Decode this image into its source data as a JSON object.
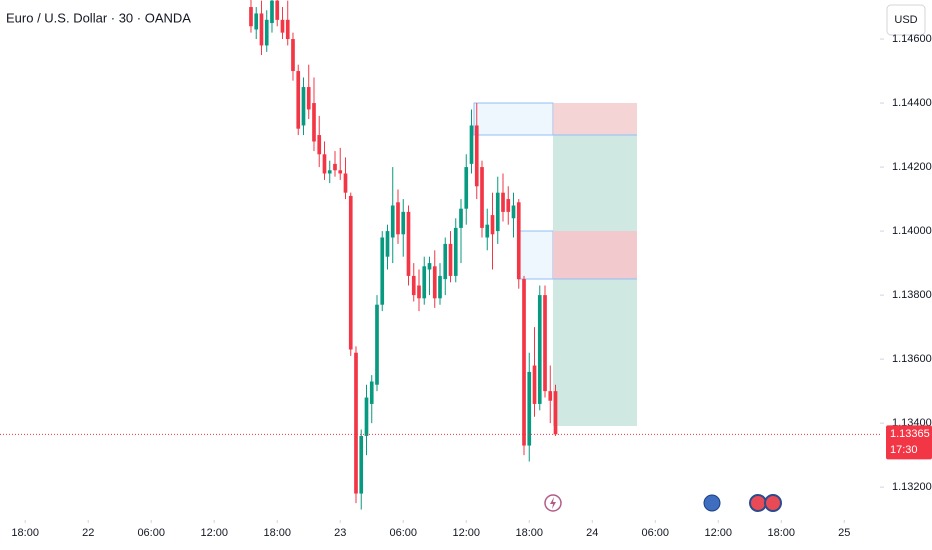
{
  "chart_data": {
    "type": "candlestick",
    "title": "Euro / U.S. Dollar · 30 · OANDA",
    "currency": "USD",
    "up_color": "#089981",
    "down_color": "#f23645",
    "last_price": 1.13365,
    "last_price_label": "1.13365",
    "countdown": "17:30",
    "xlim": [
      -2.4,
      81.4
    ],
    "xticks": [
      {
        "value": 0,
        "label": "18:00"
      },
      {
        "value": 6,
        "label": "22"
      },
      {
        "value": 12,
        "label": "06:00"
      },
      {
        "value": 18,
        "label": "12:00"
      },
      {
        "value": 24,
        "label": "18:00"
      },
      {
        "value": 30,
        "label": "23"
      },
      {
        "value": 36,
        "label": "06:00"
      },
      {
        "value": 42,
        "label": "12:00"
      },
      {
        "value": 48,
        "label": "18:00"
      },
      {
        "value": 54,
        "label": "24"
      },
      {
        "value": 60,
        "label": "06:00"
      },
      {
        "value": 66,
        "label": "12:00"
      },
      {
        "value": 72,
        "label": "18:00"
      },
      {
        "value": 78,
        "label": "25"
      }
    ],
    "ylim": [
      1.13113,
      1.14722
    ],
    "yticks": [
      {
        "value": 1.146,
        "label": "1.14600"
      },
      {
        "value": 1.144,
        "label": "1.14400"
      },
      {
        "value": 1.142,
        "label": "1.14200"
      },
      {
        "value": 1.14,
        "label": "1.14000"
      },
      {
        "value": 1.138,
        "label": "1.13800"
      },
      {
        "value": 1.136,
        "label": "1.13600"
      },
      {
        "value": 1.134,
        "label": "1.13400"
      },
      {
        "value": 1.132,
        "label": "1.13200"
      }
    ],
    "x": [
      21.5,
      22,
      22.5,
      23,
      23.5,
      24,
      24.5,
      25,
      25.5,
      26,
      26.5,
      27,
      27.5,
      28,
      28.5,
      29,
      29.5,
      30,
      30.5,
      31,
      31.5,
      32,
      32.5,
      33,
      33.5,
      34,
      34.5,
      35,
      35.5,
      36,
      36.5,
      37,
      37.5,
      38,
      38.5,
      39,
      39.5,
      40,
      40.5,
      41,
      41.5,
      42,
      42.5,
      43,
      43.5,
      44,
      44.5,
      45,
      45.5,
      46,
      46.5,
      47,
      47.5,
      48,
      48.5,
      49,
      49.5,
      50,
      50.5
    ],
    "open": [
      1.147,
      1.1463,
      1.1468,
      1.1458,
      1.1465,
      1.1472,
      1.1466,
      1.1466,
      1.146,
      1.145,
      1.1433,
      1.1445,
      1.144,
      1.143,
      1.1424,
      1.1418,
      1.1421,
      1.1419,
      1.1418,
      1.1411,
      1.1362,
      1.1318,
      1.1336,
      1.1346,
      1.1352,
      1.1377,
      1.1392,
      1.1398,
      1.1409,
      1.1399,
      1.1406,
      1.1386,
      1.1383,
      1.1379,
      1.1388,
      1.1389,
      1.1379,
      1.1385,
      1.1396,
      1.1386,
      1.1401,
      1.1407,
      1.1421,
      1.1433,
      1.142,
      1.1398,
      1.1405,
      1.14,
      1.1412,
      1.141,
      1.1404,
      1.1409,
      1.1385,
      1.1333,
      1.1358,
      1.1346,
      1.138,
      1.135,
      1.135
    ],
    "high": [
      1.1474,
      1.147,
      1.1472,
      1.1469,
      1.1474,
      1.1474,
      1.147,
      1.1472,
      1.1462,
      1.1452,
      1.1448,
      1.1452,
      1.1448,
      1.1436,
      1.1428,
      1.1422,
      1.1425,
      1.1426,
      1.1423,
      1.1412,
      1.1364,
      1.1338,
      1.1352,
      1.1355,
      1.138,
      1.14,
      1.1402,
      1.142,
      1.1413,
      1.141,
      1.1408,
      1.139,
      1.1388,
      1.1392,
      1.1392,
      1.1394,
      1.139,
      1.1398,
      1.14,
      1.1404,
      1.141,
      1.1424,
      1.1438,
      1.144,
      1.1422,
      1.1407,
      1.1412,
      1.1417,
      1.1418,
      1.1414,
      1.1412,
      1.141,
      1.1386,
      1.1362,
      1.137,
      1.1383,
      1.1383,
      1.1358,
      1.1352
    ],
    "low": [
      1.1462,
      1.146,
      1.1455,
      1.1456,
      1.1462,
      1.1464,
      1.146,
      1.1458,
      1.1447,
      1.143,
      1.143,
      1.1435,
      1.1425,
      1.142,
      1.1416,
      1.1415,
      1.1417,
      1.1416,
      1.141,
      1.1361,
      1.1315,
      1.1313,
      1.133,
      1.134,
      1.135,
      1.1375,
      1.1388,
      1.139,
      1.1396,
      1.1392,
      1.1383,
      1.1378,
      1.1375,
      1.1377,
      1.138,
      1.1376,
      1.1377,
      1.138,
      1.1384,
      1.1384,
      1.139,
      1.1402,
      1.1418,
      1.141,
      1.1398,
      1.1394,
      1.1388,
      1.1396,
      1.1403,
      1.1402,
      1.1398,
      1.1382,
      1.133,
      1.1328,
      1.1342,
      1.1344,
      1.1348,
      1.134,
      1.1336
    ],
    "close": [
      1.1464,
      1.1468,
      1.1458,
      1.1466,
      1.1472,
      1.1466,
      1.1462,
      1.146,
      1.145,
      1.1432,
      1.1445,
      1.1438,
      1.1428,
      1.1424,
      1.1418,
      1.1419,
      1.1419,
      1.1418,
      1.1412,
      1.1363,
      1.1318,
      1.1336,
      1.1348,
      1.1353,
      1.1377,
      1.1398,
      1.14,
      1.1408,
      1.1399,
      1.1406,
      1.1386,
      1.138,
      1.1379,
      1.1389,
      1.139,
      1.1379,
      1.1386,
      1.1396,
      1.1386,
      1.1401,
      1.1407,
      1.142,
      1.1433,
      1.1414,
      1.1401,
      1.1402,
      1.1399,
      1.1412,
      1.1406,
      1.1406,
      1.1408,
      1.1385,
      1.1333,
      1.1356,
      1.1346,
      1.138,
      1.135,
      1.1347,
      1.13365
    ]
  }
}
